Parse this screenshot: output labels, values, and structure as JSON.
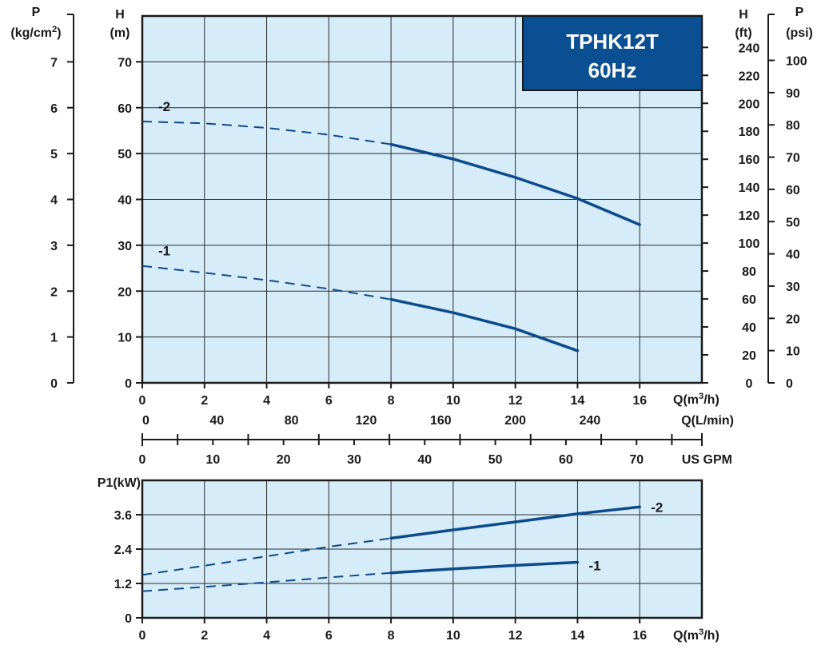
{
  "title_box": {
    "line1": "TPHK12T",
    "line2": "60Hz",
    "fill": "#0b4f93"
  },
  "curve_color": "#0b4a8c",
  "chart_data": [
    {
      "type": "line",
      "name": "head",
      "xlabel": "Q(m3/h)",
      "ylabel": "H (m)",
      "xlim": [
        0,
        18
      ],
      "ylim": [
        0,
        80
      ],
      "x_ticks": [
        0,
        2,
        4,
        6,
        8,
        10,
        12,
        14,
        16
      ],
      "y_ticks": [
        0,
        10,
        20,
        30,
        40,
        50,
        60,
        70
      ],
      "grid": true,
      "series": [
        {
          "name": "-2",
          "dashed_until_x": 8,
          "x": [
            0,
            2,
            4,
            6,
            8,
            10,
            12,
            14,
            16
          ],
          "y": [
            57,
            56.6,
            55.6,
            54.1,
            52,
            48.8,
            44.8,
            40.2,
            34.5
          ]
        },
        {
          "name": "-1",
          "dashed_until_x": 8,
          "x": [
            0,
            2,
            4,
            6,
            8,
            10,
            12,
            14
          ],
          "y": [
            25.5,
            24,
            22.4,
            20.5,
            18.2,
            15.3,
            11.8,
            7
          ]
        }
      ],
      "extra_axes": {
        "p_kgcm2": {
          "label_line1": "P",
          "label_line2": "(kg/cm",
          "label_sup": "2",
          "label_close": ")",
          "ticks": [
            0,
            1,
            2,
            3,
            4,
            5,
            6,
            7
          ]
        },
        "h_m": {
          "label_line1": "H",
          "label_line2": "(m)"
        },
        "h_ft": {
          "label_line1": "H",
          "label_line2": "(ft)",
          "ticks": [
            0,
            20,
            40,
            60,
            80,
            100,
            120,
            140,
            160,
            180,
            200,
            220,
            240
          ]
        },
        "p_psi": {
          "label_line1": "P",
          "label_line2": "(psi)",
          "ticks": [
            0,
            10,
            20,
            30,
            40,
            50,
            60,
            70,
            80,
            90,
            100
          ]
        },
        "q_m3h": {
          "label_main": "Q(m",
          "label_sup": "3",
          "label_close": "/h)"
        },
        "q_lmin": {
          "label": "Q(L/min)",
          "ticks": [
            0,
            40,
            80,
            120,
            160,
            200,
            240
          ]
        },
        "us_gpm": {
          "label": "US GPM",
          "ticks": [
            0,
            10,
            20,
            30,
            40,
            50,
            60,
            70
          ]
        }
      }
    },
    {
      "type": "line",
      "name": "power",
      "ylabel": "P1(kW)",
      "xlabel": "Q(m3/h)",
      "xlim": [
        0,
        18
      ],
      "ylim": [
        0,
        4.8
      ],
      "x_ticks": [
        0,
        2,
        4,
        6,
        8,
        10,
        12,
        14,
        16
      ],
      "y_ticks": [
        0,
        1.2,
        2.4,
        3.6
      ],
      "grid": true,
      "series": [
        {
          "name": "-2",
          "dashed_until_x": 8,
          "x": [
            0,
            2,
            4,
            6,
            8,
            10,
            12,
            14,
            16
          ],
          "y": [
            1.5,
            1.82,
            2.15,
            2.48,
            2.78,
            3.07,
            3.35,
            3.63,
            3.87
          ]
        },
        {
          "name": "-1",
          "dashed_until_x": 8,
          "x": [
            0,
            2,
            4,
            6,
            8,
            10,
            12,
            14
          ],
          "y": [
            0.93,
            1.08,
            1.24,
            1.41,
            1.57,
            1.71,
            1.83,
            1.94
          ]
        }
      ]
    }
  ]
}
